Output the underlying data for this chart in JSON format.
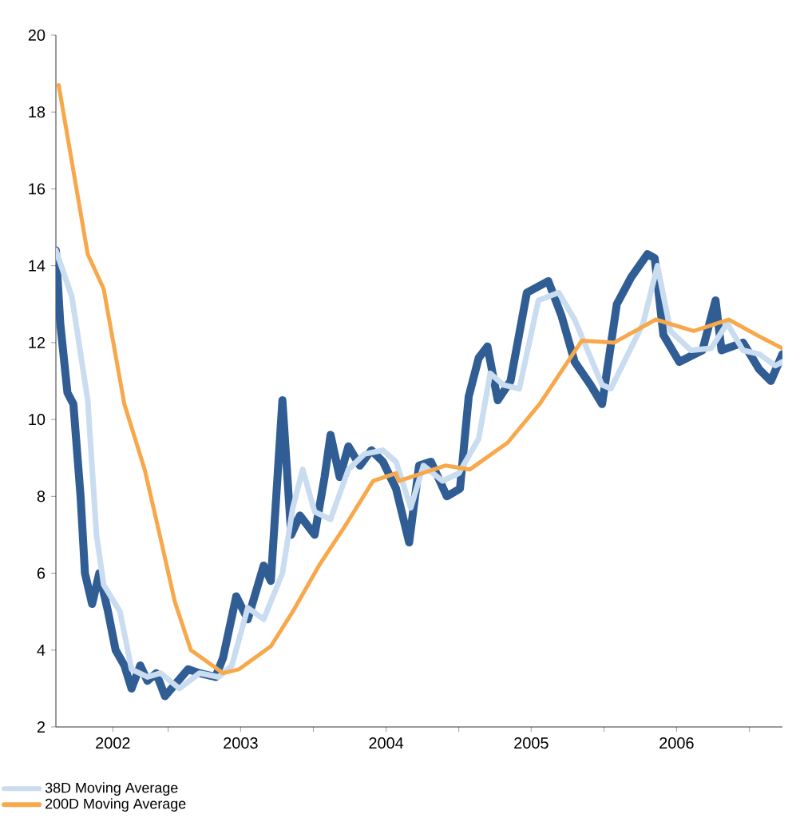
{
  "chart_data": {
    "type": "line",
    "xlim": [
      "2002-03-25",
      "2007-03-25"
    ],
    "xticks": [
      {
        "value": "2002-08-15",
        "label": "2002"
      },
      {
        "value": "2003-01-01",
        "label": null
      },
      {
        "value": "2003-07-02",
        "label": "2003"
      },
      {
        "value": "2004-01-01",
        "label": null
      },
      {
        "value": "2004-07-02",
        "label": "2004"
      },
      {
        "value": "2005-01-01",
        "label": null
      },
      {
        "value": "2005-07-02",
        "label": "2005"
      },
      {
        "value": "2006-01-01",
        "label": null
      },
      {
        "value": "2006-07-02",
        "label": "2006"
      },
      {
        "value": "2007-01-01",
        "label": null
      }
    ],
    "ylim": [
      2,
      20
    ],
    "yticks": [
      2,
      4,
      6,
      8,
      10,
      12,
      14,
      16,
      18,
      20
    ],
    "grid": false,
    "legend": "bottom left",
    "marker": "none",
    "line_style": "solid",
    "series": [
      {
        "color": "#2f5d94",
        "x": [
          "2002-03-25",
          "2002-04-05",
          "2002-04-23",
          "2002-05-08",
          "2002-05-26",
          "2002-06-06",
          "2002-06-24",
          "2002-07-12",
          "2002-08-03",
          "2002-08-22",
          "2002-09-13",
          "2002-10-01",
          "2002-10-23",
          "2002-11-10",
          "2002-12-02",
          "2002-12-24",
          "2003-01-18",
          "2003-02-20",
          "2003-03-21",
          "2003-04-30",
          "2003-05-19",
          "2003-06-21",
          "2003-07-20",
          "2003-08-29",
          "2003-09-16",
          "2003-10-15",
          "2003-11-06",
          "2003-11-28",
          "2004-01-04",
          "2004-01-29",
          "2004-02-13",
          "2004-03-07",
          "2004-03-29",
          "2004-04-27",
          "2004-05-26",
          "2004-06-24",
          "2004-07-27",
          "2004-08-29",
          "2004-09-23",
          "2004-10-23",
          "2004-12-02",
          "2005-01-04",
          "2005-01-26",
          "2005-02-20",
          "2005-03-14",
          "2005-04-09",
          "2005-05-11",
          "2005-06-21",
          "2005-08-14",
          "2005-09-16",
          "2005-10-19",
          "2005-11-28",
          "2005-12-27",
          "2006-02-02",
          "2006-03-10",
          "2006-04-20",
          "2006-05-08",
          "2006-05-30",
          "2006-07-09",
          "2006-09-05",
          "2006-10-08",
          "2006-10-23",
          "2006-12-16",
          "2007-01-26",
          "2007-02-24",
          "2007-03-25"
        ],
        "values": [
          14.4,
          12.5,
          10.7,
          10.4,
          8.0,
          6.0,
          5.2,
          6.0,
          5.0,
          4.0,
          3.6,
          3.0,
          3.6,
          3.2,
          3.4,
          2.8,
          3.1,
          3.5,
          3.4,
          3.3,
          3.8,
          5.4,
          4.8,
          6.2,
          5.8,
          10.5,
          7.0,
          7.5,
          7.0,
          8.5,
          9.6,
          8.5,
          9.3,
          8.8,
          9.2,
          8.9,
          8.2,
          6.8,
          8.8,
          8.9,
          8.0,
          8.2,
          10.6,
          11.6,
          11.9,
          10.5,
          11.0,
          13.3,
          13.6,
          12.7,
          11.5,
          10.9,
          10.4,
          13.0,
          13.7,
          14.3,
          14.2,
          12.2,
          11.5,
          11.8,
          13.1,
          11.8,
          12.0,
          11.3,
          11.0,
          11.7
        ]
      },
      {
        "name": "38D Moving Average",
        "color": "#c9dcf0",
        "x": [
          "2002-03-25",
          "2002-05-04",
          "2002-06-13",
          "2002-07-05",
          "2002-07-23",
          "2002-09-02",
          "2002-10-01",
          "2002-11-10",
          "2002-12-13",
          "2003-01-29",
          "2003-03-21",
          "2003-05-08",
          "2003-06-10",
          "2003-07-20",
          "2003-08-29",
          "2003-10-15",
          "2003-11-10",
          "2003-12-05",
          "2004-01-04",
          "2004-02-13",
          "2004-03-29",
          "2004-05-08",
          "2004-06-24",
          "2004-07-27",
          "2004-09-02",
          "2004-10-04",
          "2004-11-21",
          "2005-01-01",
          "2005-02-20",
          "2005-03-21",
          "2005-04-23",
          "2005-06-02",
          "2005-07-20",
          "2005-09-09",
          "2005-10-19",
          "2005-12-27",
          "2006-01-18",
          "2006-04-09",
          "2006-05-15",
          "2006-06-17",
          "2006-08-07",
          "2006-09-27",
          "2006-11-06",
          "2006-12-16",
          "2007-01-26",
          "2007-03-07",
          "2007-03-25"
        ],
        "values": [
          14.4,
          13.2,
          10.5,
          7.0,
          5.7,
          5.0,
          3.5,
          3.3,
          3.4,
          3.0,
          3.4,
          3.3,
          3.6,
          5.1,
          4.8,
          6.0,
          7.7,
          8.7,
          7.6,
          7.4,
          8.7,
          9.1,
          9.2,
          8.9,
          7.7,
          8.8,
          8.4,
          8.6,
          9.5,
          11.2,
          10.9,
          10.8,
          13.1,
          13.3,
          12.6,
          10.9,
          10.8,
          12.5,
          14.0,
          12.3,
          11.8,
          11.85,
          12.5,
          11.8,
          11.7,
          11.4,
          11.5
        ]
      },
      {
        "name": "200D Moving Average",
        "color": "#f7a84a",
        "x": [
          "2002-04-01",
          "2002-06-13",
          "2002-07-23",
          "2002-09-13",
          "2002-11-03",
          "2002-12-13",
          "2003-01-18",
          "2003-02-27",
          "2003-05-19",
          "2003-06-28",
          "2003-09-16",
          "2003-11-10",
          "2004-01-15",
          "2004-03-25",
          "2004-05-30",
          "2004-07-27",
          "2004-08-03",
          "2004-11-28",
          "2005-01-29",
          "2005-05-04",
          "2005-07-23",
          "2005-11-06",
          "2006-01-26",
          "2006-05-11",
          "2006-08-14",
          "2006-11-10",
          "2007-02-06",
          "2007-03-25"
        ],
        "values": [
          18.7,
          14.3,
          13.4,
          10.4,
          8.7,
          6.9,
          5.25,
          4.0,
          3.4,
          3.5,
          4.1,
          5.0,
          6.2,
          7.3,
          8.4,
          8.6,
          8.4,
          8.8,
          8.7,
          9.4,
          10.4,
          12.05,
          12.0,
          12.6,
          12.3,
          12.6,
          12.1,
          11.85
        ]
      }
    ]
  }
}
